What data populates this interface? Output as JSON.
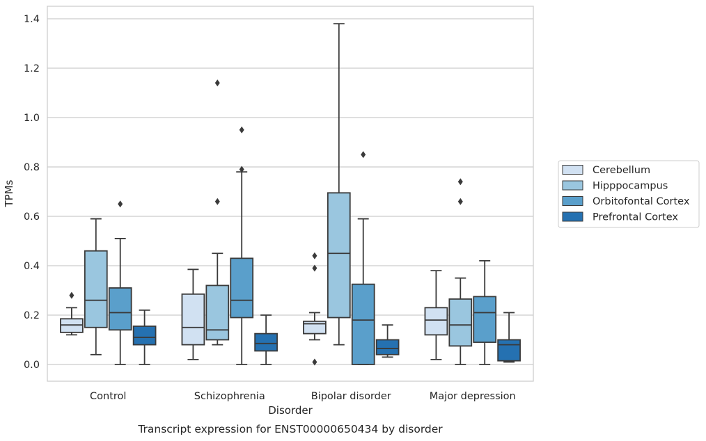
{
  "chart_data": {
    "type": "box",
    "caption": "Transcript expression for ENST00000650434 by disorder",
    "xlabel": "Disorder",
    "ylabel": "TPMs",
    "ylim": [
      -0.065,
      1.45
    ],
    "yticks": [
      0.0,
      0.2,
      0.4,
      0.6,
      0.8,
      1.0,
      1.2,
      1.4
    ],
    "ytick_labels": [
      "0.0",
      "0.2",
      "0.4",
      "0.6",
      "0.8",
      "1.0",
      "1.2",
      "1.4"
    ],
    "grid": "horizontal",
    "legend_position": "right",
    "categories": [
      "Control",
      "Schizophrenia",
      "Bipolar disorder",
      "Major depression"
    ],
    "series": [
      {
        "name": "Cerebellum",
        "color": "#d1e1f2",
        "boxes": [
          {
            "whisker_low": 0.12,
            "q1": 0.13,
            "median": 0.16,
            "q3": 0.185,
            "whisker_high": 0.23,
            "outliers": [
              0.28
            ]
          },
          {
            "whisker_low": 0.02,
            "q1": 0.08,
            "median": 0.15,
            "q3": 0.285,
            "whisker_high": 0.385,
            "outliers": []
          },
          {
            "whisker_low": 0.1,
            "q1": 0.125,
            "median": 0.165,
            "q3": 0.175,
            "whisker_high": 0.21,
            "outliers": [
              0.44,
              0.39,
              0.01
            ]
          },
          {
            "whisker_low": 0.02,
            "q1": 0.12,
            "median": 0.18,
            "q3": 0.23,
            "whisker_high": 0.38,
            "outliers": []
          }
        ]
      },
      {
        "name": "Hipppocampus",
        "color": "#9ac6df",
        "boxes": [
          {
            "whisker_low": 0.04,
            "q1": 0.15,
            "median": 0.26,
            "q3": 0.46,
            "whisker_high": 0.59,
            "outliers": []
          },
          {
            "whisker_low": 0.08,
            "q1": 0.1,
            "median": 0.14,
            "q3": 0.32,
            "whisker_high": 0.45,
            "outliers": [
              1.14,
              0.66
            ]
          },
          {
            "whisker_low": 0.08,
            "q1": 0.19,
            "median": 0.45,
            "q3": 0.695,
            "whisker_high": 1.38,
            "outliers": []
          },
          {
            "whisker_low": 0.0,
            "q1": 0.075,
            "median": 0.16,
            "q3": 0.265,
            "whisker_high": 0.35,
            "outliers": [
              0.74,
              0.66
            ]
          }
        ]
      },
      {
        "name": "Orbitofontal Cortex",
        "color": "#5a9fcb",
        "boxes": [
          {
            "whisker_low": 0.0,
            "q1": 0.14,
            "median": 0.21,
            "q3": 0.31,
            "whisker_high": 0.51,
            "outliers": [
              0.65
            ]
          },
          {
            "whisker_low": 0.0,
            "q1": 0.19,
            "median": 0.26,
            "q3": 0.43,
            "whisker_high": 0.78,
            "outliers": [
              0.95,
              0.79
            ]
          },
          {
            "whisker_low": 0.0,
            "q1": 0.0,
            "median": 0.18,
            "q3": 0.325,
            "whisker_high": 0.59,
            "outliers": [
              0.85
            ]
          },
          {
            "whisker_low": 0.0,
            "q1": 0.09,
            "median": 0.21,
            "q3": 0.275,
            "whisker_high": 0.42,
            "outliers": []
          }
        ]
      },
      {
        "name": "Prefrontal Cortex",
        "color": "#2571b1",
        "boxes": [
          {
            "whisker_low": 0.0,
            "q1": 0.08,
            "median": 0.11,
            "q3": 0.155,
            "whisker_high": 0.22,
            "outliers": []
          },
          {
            "whisker_low": 0.0,
            "q1": 0.055,
            "median": 0.085,
            "q3": 0.125,
            "whisker_high": 0.2,
            "outliers": []
          },
          {
            "whisker_low": 0.03,
            "q1": 0.04,
            "median": 0.065,
            "q3": 0.1,
            "whisker_high": 0.16,
            "outliers": []
          },
          {
            "whisker_low": 0.01,
            "q1": 0.015,
            "median": 0.08,
            "q3": 0.1,
            "whisker_high": 0.21,
            "outliers": []
          }
        ]
      }
    ]
  }
}
